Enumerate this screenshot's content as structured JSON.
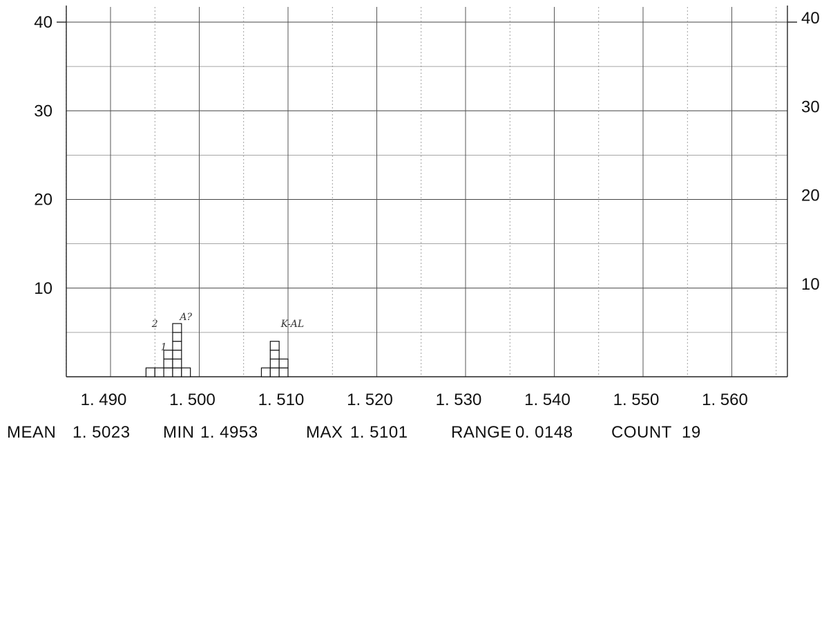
{
  "chart_data": {
    "type": "bar",
    "title": "",
    "xlabel": "",
    "ylabel": "",
    "xlim": [
      1.48,
      1.565
    ],
    "ylim": [
      0,
      40
    ],
    "y_ticks": [
      10,
      20,
      30,
      40
    ],
    "y_tick_labels": [
      "10",
      "20",
      "30",
      "40"
    ],
    "x_ticks": [
      1.49,
      1.5,
      1.51,
      1.52,
      1.53,
      1.54,
      1.55,
      1.56
    ],
    "x_tick_labels": [
      "1. 490",
      "1. 500",
      "1. 510",
      "1. 520",
      "1. 530",
      "1. 540",
      "1. 550",
      "1. 560"
    ],
    "grid": true,
    "bin_width": 0.001,
    "bins": [
      {
        "x": 1.495,
        "count": 1
      },
      {
        "x": 1.496,
        "count": 1
      },
      {
        "x": 1.497,
        "count": 3
      },
      {
        "x": 1.498,
        "count": 6
      },
      {
        "x": 1.499,
        "count": 1
      },
      {
        "x": 1.508,
        "count": 1
      },
      {
        "x": 1.509,
        "count": 4
      },
      {
        "x": 1.51,
        "count": 2
      }
    ],
    "annotations": [
      {
        "text": "A?",
        "x": 1.4985,
        "y": 6.4
      },
      {
        "text": "2",
        "x": 1.495,
        "y": 5.6
      },
      {
        "text": "1",
        "x": 1.496,
        "y": 3.0
      },
      {
        "text": "K-AL",
        "x": 1.5105,
        "y": 5.6
      }
    ]
  },
  "stats": {
    "mean_label": "MEAN",
    "mean_value": "1. 5023",
    "min_label": "MIN",
    "min_value": "1. 4953",
    "max_label": "MAX",
    "max_value": "1. 5101",
    "range_label": "RANGE",
    "range_value": "0. 0148",
    "count_label": "COUNT",
    "count_value": "19"
  }
}
